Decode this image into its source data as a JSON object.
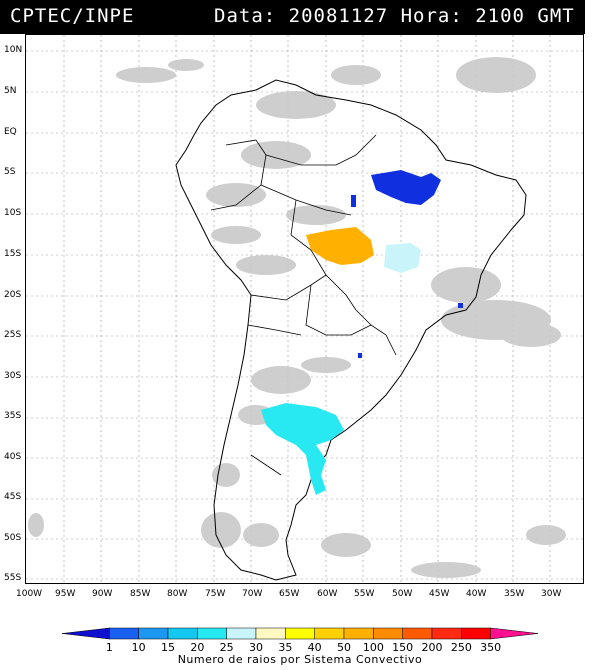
{
  "header": {
    "agency": "CPTEC/INPE",
    "datetime_label": "Data: 20081127 Hora: 2100 GMT"
  },
  "map": {
    "lat_labels": [
      "10N",
      "5N",
      "EQ",
      "5S",
      "10S",
      "15S",
      "20S",
      "25S",
      "30S",
      "35S",
      "40S",
      "45S",
      "50S",
      "55S"
    ],
    "lon_labels": [
      "100W",
      "95W",
      "90W",
      "85W",
      "80W",
      "75W",
      "70W",
      "65W",
      "60W",
      "55W",
      "50W",
      "45W",
      "40W",
      "35W",
      "30W"
    ],
    "colors": {
      "cloud": "#c9c9c9",
      "cluster_blue": "#1030e0",
      "cluster_orange": "#ffb000",
      "cluster_lightcyan": "#c8f4fa",
      "cluster_cyan": "#28e8f2"
    }
  },
  "legend": {
    "values": [
      "1",
      "10",
      "15",
      "20",
      "25",
      "30",
      "35",
      "40",
      "50",
      "100",
      "150",
      "200",
      "250",
      "350"
    ],
    "colors": [
      "#1010d0",
      "#1860f0",
      "#1c98f0",
      "#14c8f0",
      "#28e8f2",
      "#c8f4fa",
      "#fff8c0",
      "#ffff00",
      "#ffd000",
      "#ffb000",
      "#ff8c00",
      "#ff5a00",
      "#ff2a10",
      "#ff0000",
      "#ff1090"
    ],
    "caption": "Numero de raios por Sistema Convectivo"
  }
}
